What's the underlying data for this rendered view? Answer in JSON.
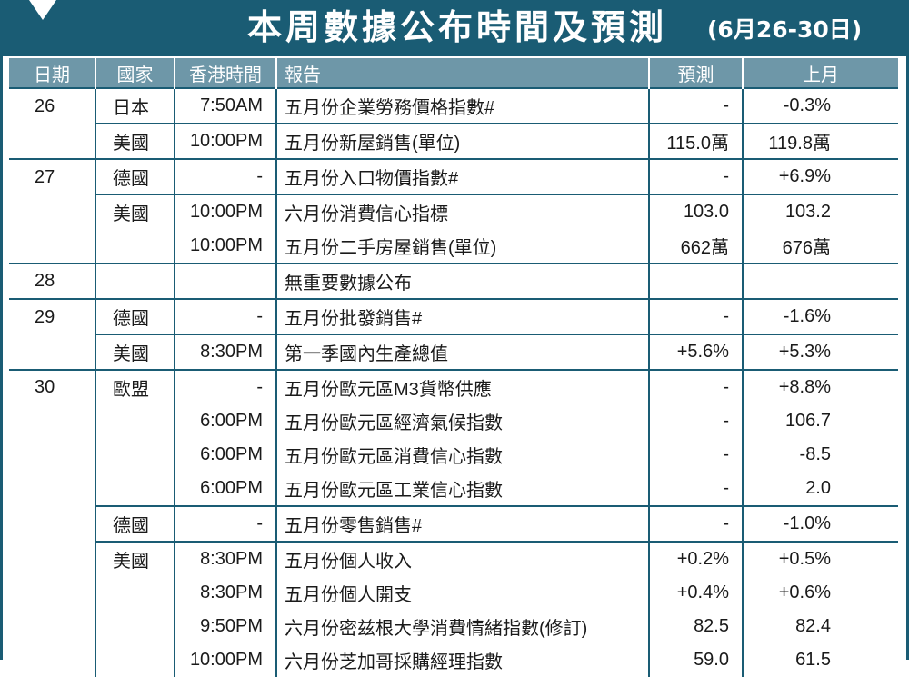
{
  "title": "本周數據公布時間及預測",
  "subtitle": "(6月26-30日)",
  "colors": {
    "header_bar": "#1a5c74",
    "column_header": "#6e97a8",
    "rule": "#1a5c74"
  },
  "columns": [
    "日期",
    "國家",
    "香港時間",
    "報告",
    "預測",
    "上月"
  ],
  "rows": [
    {
      "date": "26",
      "country": "日本",
      "time": "7:50AM",
      "report": "五月份企業勞務價格指數#",
      "forecast": "-",
      "prev": "-0.3%"
    },
    {
      "date": "",
      "country": "美國",
      "time": "10:00PM",
      "report": "五月份新屋銷售(單位)",
      "forecast": "115.0萬",
      "prev": "119.8萬"
    },
    {
      "date": "27",
      "country": "德國",
      "time": "-",
      "report": "五月份入口物價指數#",
      "forecast": "-",
      "prev": "+6.9%"
    },
    {
      "date": "",
      "country": "美國",
      "time": "10:00PM",
      "report": "六月份消費信心指標",
      "forecast": "103.0",
      "prev": "103.2"
    },
    {
      "date": "",
      "country": "",
      "time": "10:00PM",
      "report": "五月份二手房屋銷售(單位)",
      "forecast": "662萬",
      "prev": "676萬"
    },
    {
      "date": "28",
      "country": "",
      "time": "",
      "report": "無重要數據公布",
      "forecast": "",
      "prev": ""
    },
    {
      "date": "29",
      "country": "德國",
      "time": "-",
      "report": "五月份批發銷售#",
      "forecast": "-",
      "prev": "-1.6%"
    },
    {
      "date": "",
      "country": "美國",
      "time": "8:30PM",
      "report": "第一季國內生產總值",
      "forecast": "+5.6%",
      "prev": "+5.3%"
    },
    {
      "date": "30",
      "country": "歐盟",
      "time": "-",
      "report": "五月份歐元區M3貨幣供應",
      "forecast": "-",
      "prev": "+8.8%"
    },
    {
      "date": "",
      "country": "",
      "time": "6:00PM",
      "report": "五月份歐元區經濟氣候指數",
      "forecast": "-",
      "prev": "106.7"
    },
    {
      "date": "",
      "country": "",
      "time": "6:00PM",
      "report": "五月份歐元區消費信心指數",
      "forecast": "-",
      "prev": "-8.5"
    },
    {
      "date": "",
      "country": "",
      "time": "6:00PM",
      "report": "五月份歐元區工業信心指數",
      "forecast": "-",
      "prev": "2.0"
    },
    {
      "date": "",
      "country": "德國",
      "time": "-",
      "report": "五月份零售銷售#",
      "forecast": "-",
      "prev": "-1.0%"
    },
    {
      "date": "",
      "country": "美國",
      "time": "8:30PM",
      "report": "五月份個人收入",
      "forecast": "+0.2%",
      "prev": "+0.5%"
    },
    {
      "date": "",
      "country": "",
      "time": "8:30PM",
      "report": "五月份個人開支",
      "forecast": "+0.4%",
      "prev": "+0.6%"
    },
    {
      "date": "",
      "country": "",
      "time": "9:50PM",
      "report": "六月份密兹根大學消費情緒指數(修訂)",
      "forecast": "82.5",
      "prev": "82.4"
    },
    {
      "date": "",
      "country": "",
      "time": "10:00PM",
      "report": "六月份芝加哥採購經理指數",
      "forecast": "59.0",
      "prev": "61.5"
    }
  ]
}
